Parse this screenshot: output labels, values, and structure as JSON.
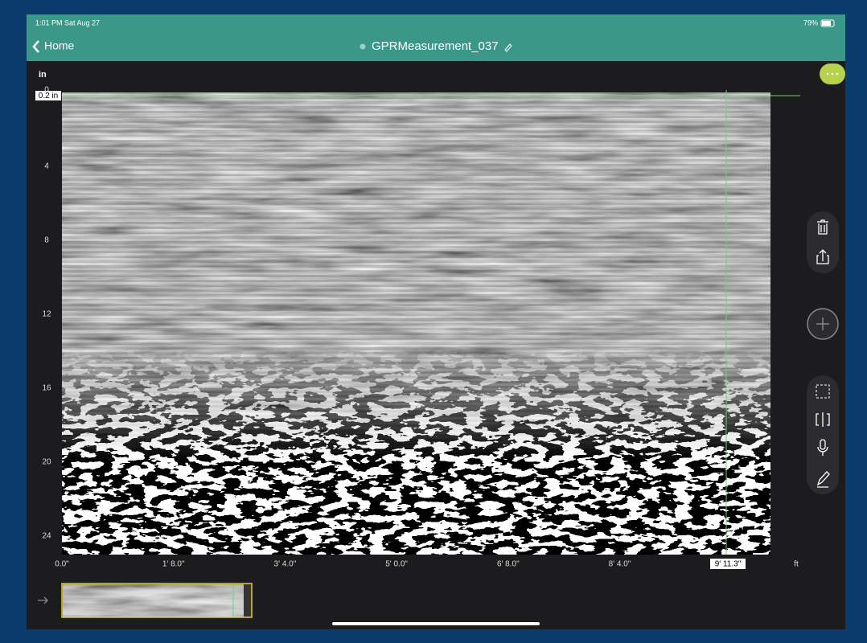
{
  "status_bar": {
    "time": "1:01 PM  Sat Aug 27",
    "battery": "79%"
  },
  "nav": {
    "back": "Home",
    "title": "GPRMeasurement_037"
  },
  "plot": {
    "y_unit": "in",
    "y_ticks": [
      0,
      4,
      8,
      12,
      16,
      20,
      24
    ],
    "depth_marker": "0.2 in",
    "x_ticks": [
      "0.0\"",
      "1' 8.0\"",
      "3' 4.0\"",
      "5' 0.0\"",
      "6' 8.0\"",
      "8' 4.0\""
    ],
    "cursor_label": "9' 11.3\"",
    "x_unit": "ft"
  }
}
